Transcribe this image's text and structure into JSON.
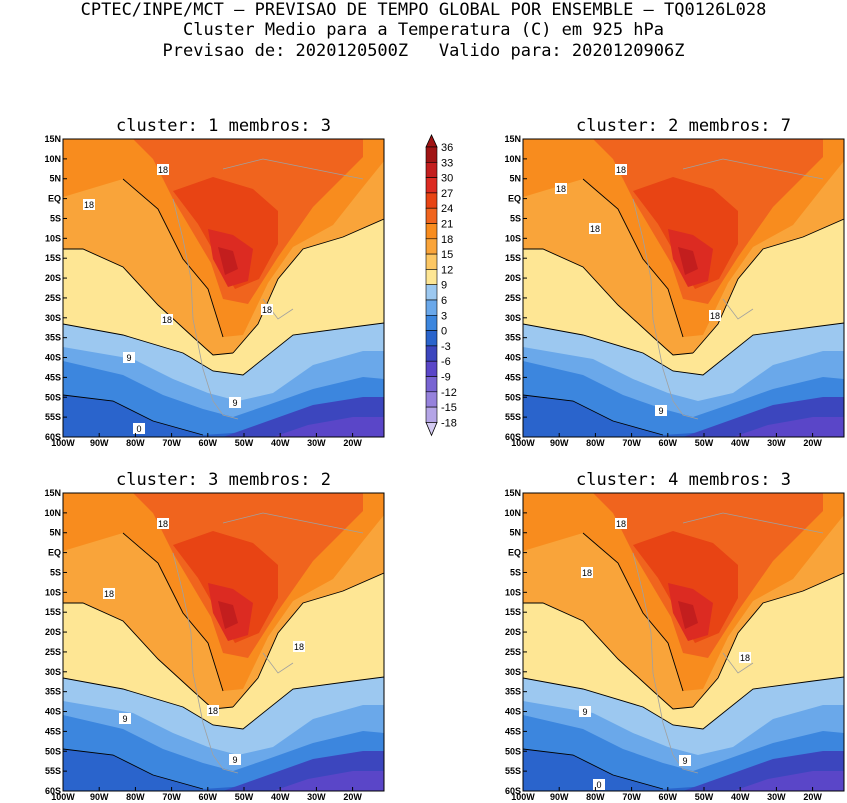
{
  "header": {
    "line1": "CPTEC/INPE/MCT – PREVISAO DE TEMPO GLOBAL POR ENSEMBLE – TQ0126L028",
    "line2": "Cluster Medio para a Temperatura (C) em 925 hPa",
    "line3": "Previsao de: 2020120500Z   Valido para: 2020120906Z"
  },
  "axes": {
    "lat_labels": [
      "15N",
      "10N",
      "5N",
      "EQ",
      "5S",
      "10S",
      "15S",
      "20S",
      "25S",
      "30S",
      "35S",
      "40S",
      "45S",
      "50S",
      "55S",
      "60S"
    ],
    "lon_labels": [
      "100W",
      "90W",
      "80W",
      "70W",
      "60W",
      "50W",
      "40W",
      "30W",
      "20W"
    ]
  },
  "panels": [
    {
      "title": "cluster: 1   membros: 3",
      "contour_labels": [
        "18",
        "18",
        "18",
        "18",
        "9",
        "9",
        "0"
      ]
    },
    {
      "title": "cluster: 2   membros: 7",
      "contour_labels": [
        "18",
        "18",
        "18",
        "18",
        "9"
      ]
    },
    {
      "title": "cluster: 3   membros: 2",
      "contour_labels": [
        "18",
        "18",
        "18",
        "18",
        "9",
        "9"
      ]
    },
    {
      "title": "cluster: 4   membros: 3",
      "contour_labels": [
        "18",
        "18",
        "18",
        "9",
        "9",
        "0"
      ]
    }
  ],
  "colorbar": {
    "levels": [
      "36",
      "33",
      "30",
      "27",
      "24",
      "21",
      "18",
      "15",
      "12",
      "9",
      "6",
      "3",
      "0",
      "-3",
      "-6",
      "-9",
      "-12",
      "-15",
      "-18"
    ],
    "colors": [
      "#a01414",
      "#c31e1e",
      "#dc2b22",
      "#e84414",
      "#f0641e",
      "#f88c1e",
      "#f9a43a",
      "#fcc764",
      "#fee694",
      "#9cc8f0",
      "#6aa8ea",
      "#3c86de",
      "#2a64cc",
      "#3c46be",
      "#5a46c8",
      "#7864d2",
      "#9682dc",
      "#b4a5e6",
      "#d4cbf2"
    ]
  }
}
